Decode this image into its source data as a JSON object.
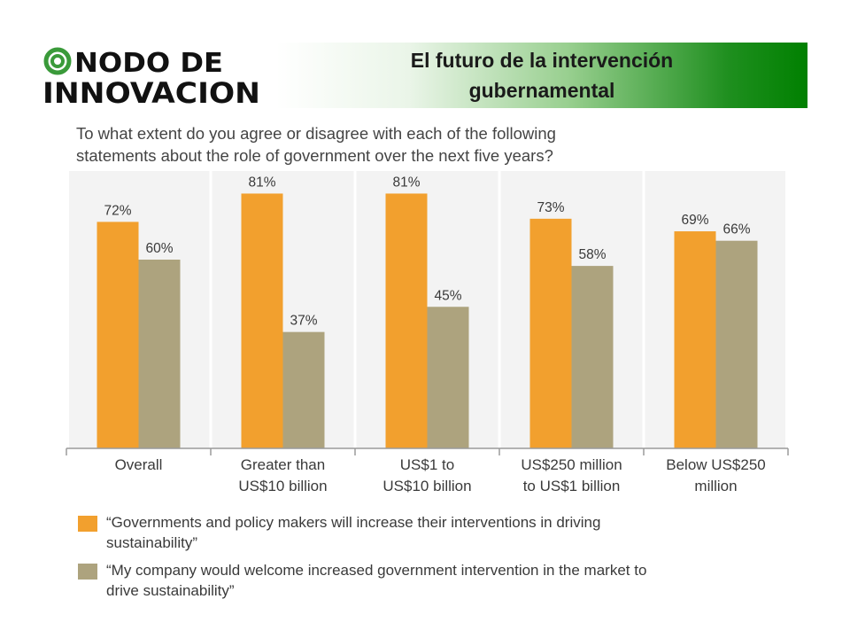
{
  "logo": {
    "line1": "NODO DE",
    "line2": "INNOVACION",
    "icon": "spiral-icon",
    "icon_color": "#3a9a3a"
  },
  "banner": {
    "title": "El futuro de la intervención\ngubernamental",
    "gradient_end_color": "#008000"
  },
  "question": "To what extent do you agree or disagree with each of the following\nstatements about the role of government over the next five years?",
  "chart_data": {
    "type": "bar",
    "categories": [
      "Overall",
      "Greater than\nUS$10 billion",
      "US$1 to\nUS$10 billion",
      "US$250 million\nto US$1 billion",
      "Below US$250\nmillion"
    ],
    "series": [
      {
        "name": "“Governments and policy makers will increase their interventions in driving sustainability”",
        "color": "#f2a02e",
        "values": [
          72,
          81,
          81,
          73,
          69
        ],
        "labels": [
          "72%",
          "81%",
          "81%",
          "73%",
          "69%"
        ]
      },
      {
        "name": "“My company would welcome increased government intervention in the market to drive sustainability”",
        "color": "#ada37e",
        "values": [
          60,
          37,
          45,
          58,
          66
        ],
        "labels": [
          "60%",
          "37%",
          "45%",
          "58%",
          "66%"
        ]
      }
    ],
    "ylim": [
      0,
      100
    ],
    "grid": false,
    "legend_position": "bottom"
  },
  "legend": [
    {
      "text": "“Governments and policy makers will increase their interventions in driving\nsustainability”",
      "color": "#f2a02e"
    },
    {
      "text": "“My company would welcome increased government intervention in the market to\ndrive sustainability”",
      "color": "#ada37e"
    }
  ]
}
